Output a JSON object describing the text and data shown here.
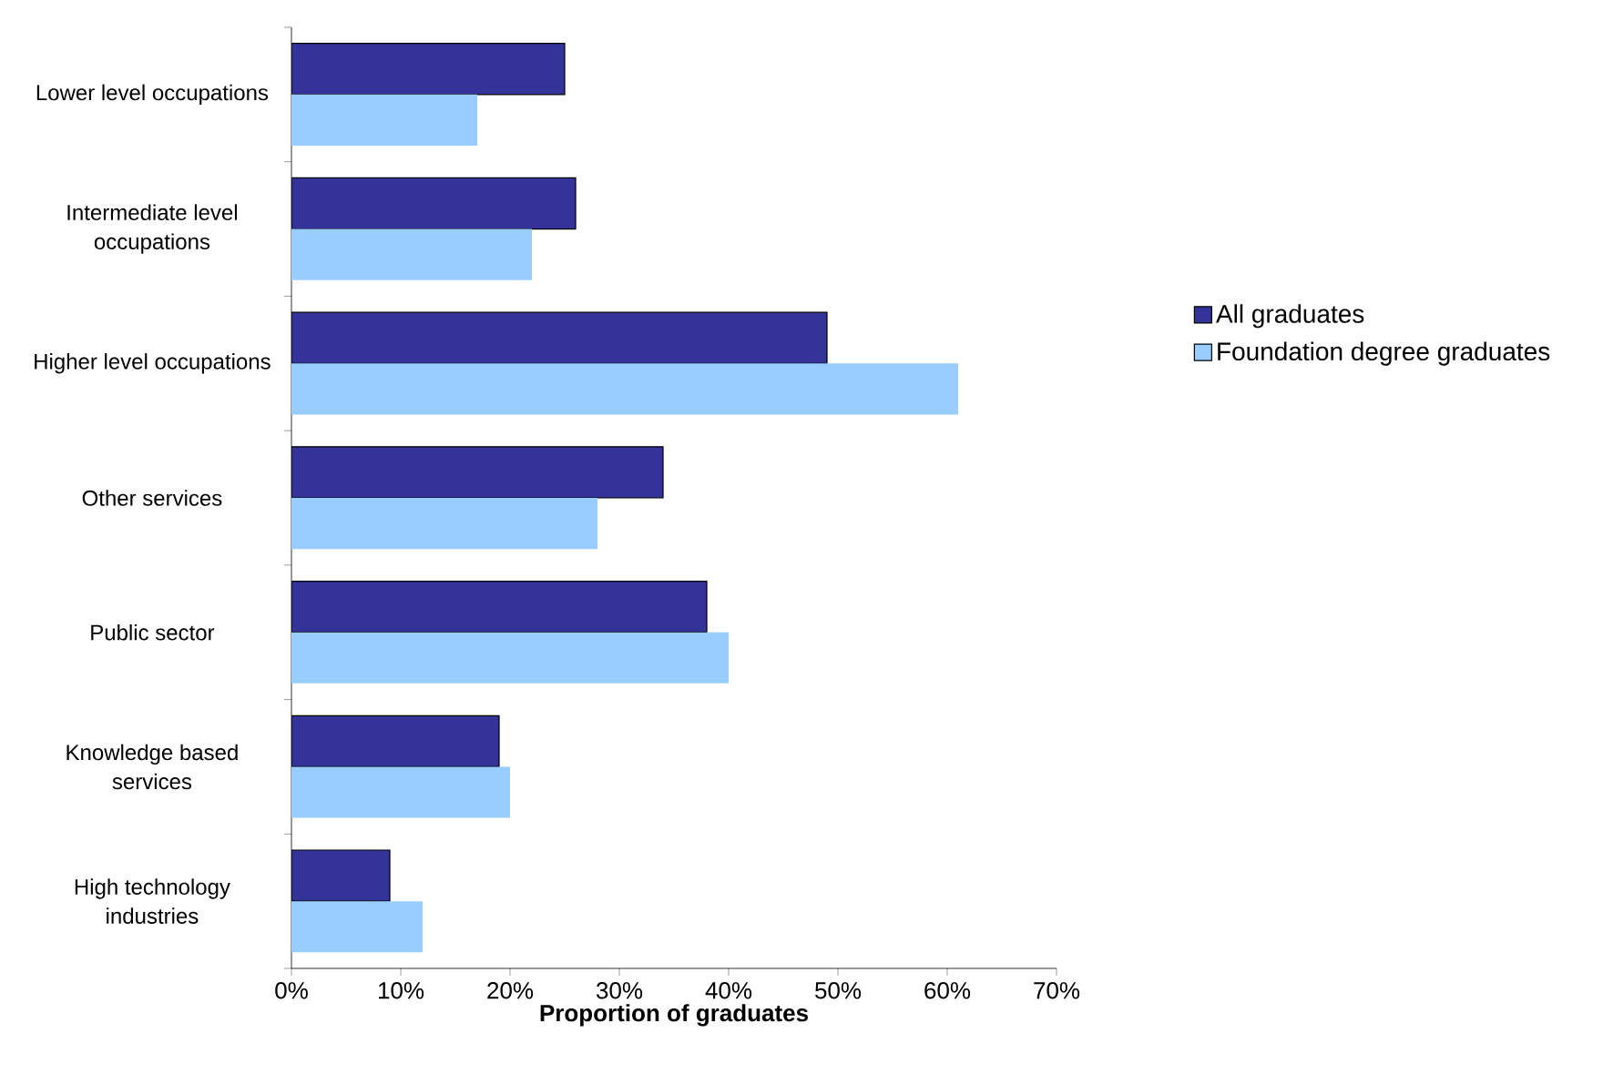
{
  "chart_data": {
    "type": "bar",
    "orientation": "horizontal",
    "categories": [
      "Lower level occupations",
      "Intermediate level occupations",
      "Higher level occupations",
      "Other services",
      "Public sector",
      "Knowledge based services",
      "High technology industries"
    ],
    "series": [
      {
        "name": "All graduates",
        "color": "#333399",
        "values": [
          25,
          26,
          49,
          34,
          38,
          19,
          9
        ]
      },
      {
        "name": "Foundation degree graduates",
        "color": "#99ccff",
        "values": [
          17,
          22,
          61,
          28,
          40,
          20,
          12
        ]
      }
    ],
    "xlabel": "Proportion of graduates",
    "xlim": [
      0,
      70
    ],
    "xticks": [
      {
        "value": 0,
        "label": "0%"
      },
      {
        "value": 10,
        "label": "10%"
      },
      {
        "value": 20,
        "label": "20%"
      },
      {
        "value": 30,
        "label": "30%"
      },
      {
        "value": 40,
        "label": "40%"
      },
      {
        "value": 50,
        "label": "50%"
      },
      {
        "value": 60,
        "label": "60%"
      },
      {
        "value": 70,
        "label": "70%"
      }
    ],
    "legend": "right"
  }
}
